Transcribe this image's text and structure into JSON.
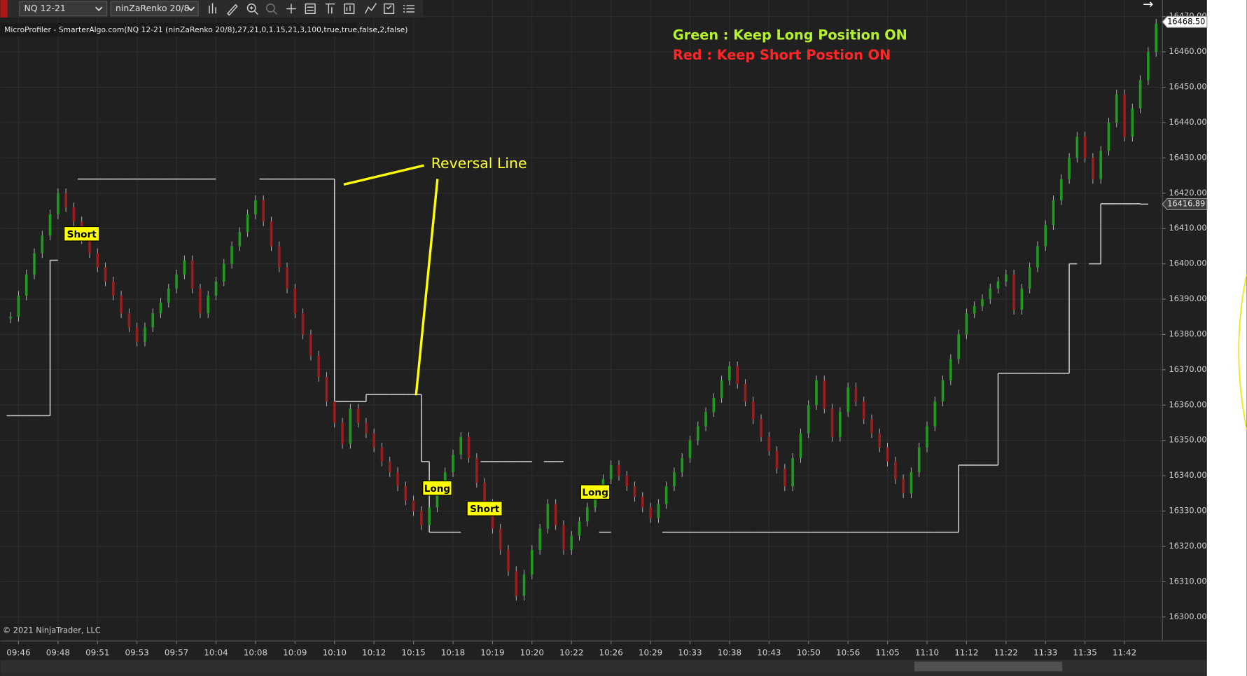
{
  "toolbar": {
    "instrument": "NQ 12-21",
    "bar_type": "ninZaRenko 20/8"
  },
  "chart_data": {
    "type": "renko",
    "title": "MicroProfiler - SmarterAlgo.com(NQ 12-21 (ninZaRenko 20/8),27,21,0,1.15,21,3,100,true,true,false,2,false)",
    "annotations": [
      "Green : Keep Long Position ON",
      "Red : Keep Short Postion ON",
      "Reversal Line"
    ],
    "copyright": "© 2021 NinjaTrader, LLC",
    "up_color": "#1f9a1f",
    "down_color": "#9a1c1c",
    "reversal_color": "#c8c8c8",
    "grid": true,
    "xlim": [
      -0.5,
      145.6
    ],
    "xticks": [
      {
        "value": 1,
        "label": "09:46"
      },
      {
        "value": 6,
        "label": "09:48"
      },
      {
        "value": 11,
        "label": "09:51"
      },
      {
        "value": 16,
        "label": "09:53"
      },
      {
        "value": 21,
        "label": "09:57"
      },
      {
        "value": 26,
        "label": "10:04"
      },
      {
        "value": 31,
        "label": "10:08"
      },
      {
        "value": 36,
        "label": "10:09"
      },
      {
        "value": 41,
        "label": "10:10"
      },
      {
        "value": 46,
        "label": "10:12"
      },
      {
        "value": 51,
        "label": "10:15"
      },
      {
        "value": 56,
        "label": "10:18"
      },
      {
        "value": 61,
        "label": "10:19"
      },
      {
        "value": 66,
        "label": "10:20"
      },
      {
        "value": 71,
        "label": "10:22"
      },
      {
        "value": 76,
        "label": "10:26"
      },
      {
        "value": 81,
        "label": "10:29"
      },
      {
        "value": 86,
        "label": "10:33"
      },
      {
        "value": 91,
        "label": "10:38"
      },
      {
        "value": 96,
        "label": "10:43"
      },
      {
        "value": 101,
        "label": "10:50"
      },
      {
        "value": 106,
        "label": "10:56"
      },
      {
        "value": 111,
        "label": "11:05"
      },
      {
        "value": 116,
        "label": "11:10"
      },
      {
        "value": 121,
        "label": "11:12"
      },
      {
        "value": 126,
        "label": "11:22"
      },
      {
        "value": 131,
        "label": "11:33"
      },
      {
        "value": 136,
        "label": "11:35"
      },
      {
        "value": 141,
        "label": "11:42"
      }
    ],
    "ylim": [
      16293.2,
      16474.7
    ],
    "yticks": [
      {
        "value": 16300,
        "label": "16300.00"
      },
      {
        "value": 16310,
        "label": "16310.00"
      },
      {
        "value": 16320,
        "label": "16320.00"
      },
      {
        "value": 16330,
        "label": "16330.00"
      },
      {
        "value": 16340,
        "label": "16340.00"
      },
      {
        "value": 16350,
        "label": "16350.00"
      },
      {
        "value": 16360,
        "label": "16360.00"
      },
      {
        "value": 16370,
        "label": "16370.00"
      },
      {
        "value": 16380,
        "label": "16380.00"
      },
      {
        "value": 16390,
        "label": "16390.00"
      },
      {
        "value": 16400,
        "label": "16400.00"
      },
      {
        "value": 16410,
        "label": "16410.00"
      },
      {
        "value": 16420,
        "label": "16420.00"
      },
      {
        "value": 16430,
        "label": "16430.00"
      },
      {
        "value": 16440,
        "label": "16440.00"
      },
      {
        "value": 16450,
        "label": "16450.00"
      },
      {
        "value": 16460,
        "label": "16460.00"
      },
      {
        "value": 16470,
        "label": "16470.00"
      }
    ],
    "closes": [
      16385,
      16391,
      16397,
      16403,
      16408,
      16414,
      16420,
      16416,
      16412,
      16407,
      16403,
      16399,
      16395,
      16391,
      16386,
      16382,
      16378,
      16382,
      16386,
      16389,
      16393,
      16397,
      16401,
      16393,
      16386,
      16391,
      16395,
      16400,
      16405,
      16409,
      16414,
      16418,
      16412,
      16405,
      16399,
      16393,
      16386,
      16380,
      16374,
      16368,
      16361,
      16355,
      16349,
      16359,
      16355,
      16352,
      16348,
      16344,
      16341,
      16337,
      16333,
      16330,
      16326,
      16331,
      16336,
      16341,
      16346,
      16351,
      16345,
      16338,
      16332,
      16325,
      16319,
      16313,
      16306,
      16312,
      16319,
      16325,
      16332,
      16326,
      16319,
      16323,
      16327,
      16331,
      16335,
      16339,
      16343,
      16340,
      16337,
      16334,
      16331,
      16328,
      16332,
      16337,
      16341,
      16345,
      16350,
      16354,
      16358,
      16362,
      16367,
      16371,
      16366,
      16361,
      16356,
      16351,
      16347,
      16342,
      16337,
      16345,
      16352,
      16360,
      16367,
      16359,
      16351,
      16358,
      16365,
      16361,
      16356,
      16352,
      16348,
      16344,
      16339,
      16335,
      16341,
      16348,
      16354,
      16361,
      16367,
      16373,
      16380,
      16386,
      16388,
      16390,
      16393,
      16395,
      16397,
      16387,
      16393,
      16399,
      16405,
      16411,
      16418,
      16424,
      16430,
      16436,
      16430,
      16424,
      16432,
      16440,
      16448,
      16436,
      16444,
      16452,
      16460,
      16468
    ],
    "reversal_line": [
      16357,
      16357,
      16357,
      16357,
      16357,
      16357,
      16401,
      null,
      null,
      16424,
      16424,
      16424,
      16424,
      16424,
      16424,
      16424,
      16424,
      16424,
      16424,
      16424,
      16424,
      16424,
      16424,
      16424,
      16424,
      16424,
      16424,
      null,
      null,
      null,
      null,
      null,
      16424,
      16424,
      16424,
      16424,
      16424,
      16424,
      16424,
      16424,
      16424,
      16424,
      16361,
      16361,
      16361,
      16361,
      16363,
      16363,
      16363,
      16363,
      16363,
      16363,
      16363,
      16344,
      16324,
      16324,
      16324,
      16324,
      null,
      null,
      16344,
      16344,
      16344,
      16344,
      16344,
      16344,
      16344,
      null,
      16344,
      16344,
      16344,
      null,
      null,
      null,
      null,
      16324,
      16324,
      null,
      null,
      null,
      null,
      null,
      null,
      16324,
      16324,
      16324,
      16324,
      16324,
      16324,
      16324,
      16324,
      16324,
      16324,
      16324,
      16324,
      16324,
      16324,
      16324,
      16324,
      16324,
      16324,
      16324,
      16324,
      16324,
      16324,
      16324,
      16324,
      16324,
      16324,
      16324,
      16324,
      16324,
      16324,
      16324,
      16324,
      16324,
      16324,
      16324,
      16324,
      16324,
      16324,
      16343,
      16343,
      16343,
      16343,
      16343,
      16369,
      16369,
      16369,
      16369,
      16369,
      16369,
      16369,
      16369,
      16369,
      16400,
      null,
      16400,
      16400,
      16417,
      16417,
      16417,
      16417,
      16417,
      16416.89
    ],
    "price_markers": [
      {
        "value": 16468.5,
        "label": "16468.50"
      },
      {
        "value": 16416.89,
        "label": "16416.89"
      }
    ],
    "signals": [
      {
        "label": "Short",
        "bar": 9,
        "price": 16408.5
      },
      {
        "label": "Long",
        "bar": 54,
        "price": 16336.5
      },
      {
        "label": "Short",
        "bar": 60,
        "price": 16330.7
      },
      {
        "label": "Long",
        "bar": 74,
        "price": 16335.4
      }
    ]
  }
}
